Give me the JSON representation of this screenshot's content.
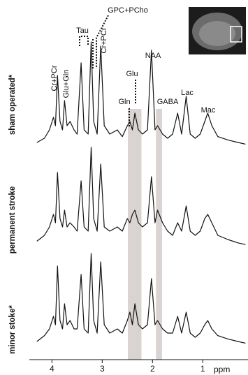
{
  "chart_data": {
    "type": "line",
    "x_label": "ppm",
    "xlim": [
      4.45,
      0.1
    ],
    "xticks": [
      4,
      3,
      2,
      1
    ],
    "x": [
      4.3,
      4.15,
      4.05,
      3.97,
      3.93,
      3.89,
      3.84,
      3.79,
      3.75,
      3.7,
      3.64,
      3.56,
      3.5,
      3.42,
      3.36,
      3.28,
      3.22,
      3.17,
      3.1,
      3.03,
      2.96,
      2.85,
      2.7,
      2.6,
      2.5,
      2.45,
      2.4,
      2.35,
      2.28,
      2.2,
      2.1,
      2.02,
      1.95,
      1.9,
      1.8,
      1.7,
      1.6,
      1.5,
      1.42,
      1.33,
      1.25,
      1.15,
      1.05,
      0.96,
      0.9,
      0.82,
      0.7,
      0.5,
      0.3,
      0.15
    ],
    "series": [
      {
        "name": "sham operated*",
        "color": "#111111",
        "values": [
          5,
          10,
          20,
          35,
          25,
          85,
          30,
          20,
          55,
          25,
          30,
          20,
          15,
          100,
          20,
          15,
          125,
          30,
          15,
          120,
          25,
          15,
          20,
          12,
          25,
          30,
          20,
          40,
          20,
          15,
          20,
          115,
          20,
          25,
          15,
          10,
          15,
          40,
          15,
          60,
          15,
          10,
          15,
          30,
          40,
          25,
          12,
          8,
          5,
          3
        ]
      },
      {
        "name": "permanent stroke",
        "color": "#111111",
        "values": [
          8,
          15,
          25,
          40,
          30,
          90,
          35,
          25,
          45,
          25,
          30,
          25,
          20,
          80,
          25,
          20,
          120,
          35,
          20,
          100,
          25,
          20,
          25,
          20,
          35,
          30,
          40,
          45,
          30,
          25,
          30,
          85,
          30,
          45,
          30,
          20,
          15,
          30,
          20,
          50,
          20,
          15,
          20,
          35,
          40,
          30,
          15,
          10,
          6,
          4
        ]
      },
      {
        "name": "minor stoke*",
        "color": "#111111",
        "values": [
          5,
          12,
          20,
          35,
          25,
          95,
          30,
          20,
          50,
          25,
          30,
          20,
          20,
          85,
          20,
          15,
          110,
          30,
          15,
          100,
          25,
          15,
          20,
          15,
          30,
          40,
          25,
          50,
          25,
          20,
          25,
          80,
          25,
          30,
          20,
          15,
          15,
          35,
          15,
          40,
          15,
          10,
          15,
          25,
          30,
          20,
          12,
          8,
          5,
          3
        ]
      }
    ],
    "highlight_ranges": [
      [
        2.49,
        2.22
      ],
      [
        1.93,
        1.81
      ]
    ],
    "highlight_color": "#d9d3d1",
    "annotations": [
      "Cr+PCr",
      "Glu+Gln",
      "Tau",
      "GPC+PCho",
      "Cr+PCr",
      "Glu",
      "Gln",
      "NAA",
      "GABA",
      "Lac",
      "Mac"
    ]
  }
}
